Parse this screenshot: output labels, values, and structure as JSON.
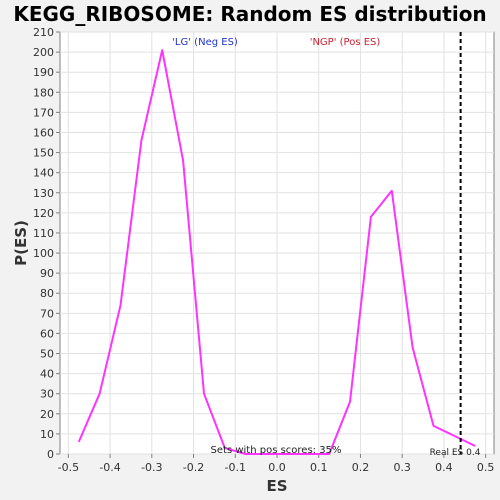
{
  "chart_data": {
    "type": "line",
    "title": "KEGG_RIBOSOME: Random ES distribution",
    "xlabel": "ES",
    "ylabel": "P(ES)",
    "xlim": [
      -0.52,
      0.52
    ],
    "ylim": [
      0,
      210
    ],
    "x_ticks": [
      -0.5,
      -0.4,
      -0.3,
      -0.2,
      -0.1,
      0.0,
      0.1,
      0.2,
      0.3,
      0.4,
      0.5
    ],
    "x_tick_labels": [
      "-0.5",
      "-0.4",
      "-0.3",
      "-0.2",
      "-0.1",
      "0.0",
      "0.1",
      "0.2",
      "0.3",
      "0.4",
      "0.5"
    ],
    "y_ticks": [
      0,
      10,
      20,
      30,
      40,
      50,
      60,
      70,
      80,
      90,
      100,
      110,
      120,
      130,
      140,
      150,
      160,
      170,
      180,
      190,
      200,
      210
    ],
    "grid": true,
    "series": [
      {
        "color": "#ff33ff",
        "points": [
          [
            -0.475,
            6
          ],
          [
            -0.425,
            30
          ],
          [
            -0.375,
            74
          ],
          [
            -0.325,
            156
          ],
          [
            -0.275,
            201
          ],
          [
            -0.225,
            146
          ],
          [
            -0.175,
            30
          ],
          [
            -0.125,
            3
          ],
          [
            -0.075,
            0
          ],
          [
            -0.025,
            0
          ],
          [
            0.025,
            0
          ],
          [
            0.075,
            0
          ],
          [
            0.125,
            0
          ],
          [
            0.175,
            26
          ],
          [
            0.225,
            118
          ],
          [
            0.275,
            131
          ],
          [
            0.325,
            53
          ],
          [
            0.375,
            14
          ],
          [
            0.425,
            9
          ],
          [
            0.475,
            4
          ]
        ]
      }
    ],
    "real_es": 0.44,
    "annotations": {
      "neg_label": "'LG' (Neg ES)",
      "neg_color": "#2233cc",
      "pos_label": "'NGP' (Pos ES)",
      "pos_color": "#cc2233",
      "pos_scores": "Sets with pos scores: 35%",
      "real_es_label": "Real ES 0.4"
    }
  }
}
